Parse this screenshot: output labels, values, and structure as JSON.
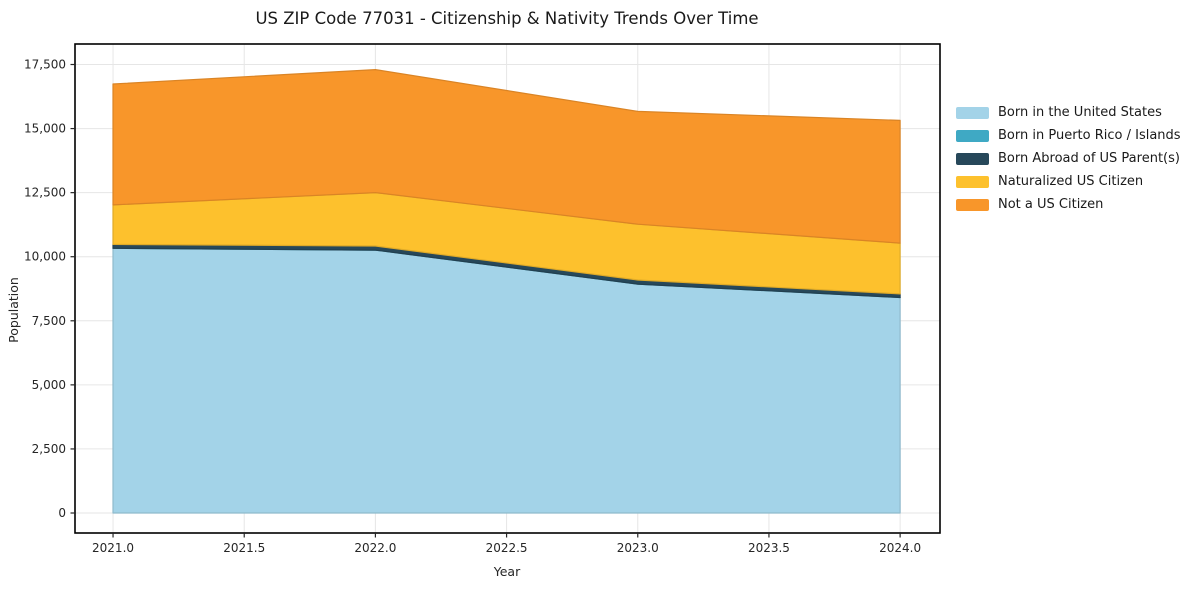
{
  "chart_data": {
    "type": "area",
    "stacked": true,
    "title": "US ZIP Code 77031 - Citizenship & Nativity Trends Over Time",
    "xlabel": "Year",
    "ylabel": "Population",
    "x": [
      2021,
      2022,
      2023,
      2024
    ],
    "series": [
      {
        "name": "Born in the United States",
        "color": "#a3d3e8",
        "values": [
          10330,
          10260,
          8930,
          8410
        ]
      },
      {
        "name": "Born in Puerto Rico / Islands",
        "color": "#3fa9c4",
        "values": [
          0,
          0,
          0,
          0
        ]
      },
      {
        "name": "Born Abroad of US Parent(s)",
        "color": "#27485a",
        "values": [
          150,
          160,
          160,
          140
        ]
      },
      {
        "name": "Naturalized US Citizen",
        "color": "#fdc12d",
        "values": [
          1540,
          2080,
          2180,
          1980
        ]
      },
      {
        "name": "Not a US Citizen",
        "color": "#f8962a",
        "values": [
          4720,
          4800,
          4400,
          4790
        ]
      }
    ],
    "stack_totals": [
      16740,
      17300,
      15670,
      15320
    ],
    "xticks": [
      2021.0,
      2021.5,
      2022.0,
      2022.5,
      2023.0,
      2023.5,
      2024.0
    ],
    "xtick_labels": [
      "2021.0",
      "2021.5",
      "2022.0",
      "2022.5",
      "2023.0",
      "2023.5",
      "2024.0"
    ],
    "yticks": [
      0,
      2500,
      5000,
      7500,
      10000,
      12500,
      15000,
      17500
    ],
    "ytick_labels": [
      "0",
      "2,500",
      "5,000",
      "7,500",
      "10,000",
      "12,500",
      "15,000",
      "17,500"
    ],
    "xlim": [
      2020.855,
      2024.152
    ],
    "ylim": [
      -780,
      18300
    ],
    "grid": true,
    "grid_color": "#e6e6e6",
    "spine_color": "#000000",
    "legend_position": "right-outside",
    "legend_frame": false
  }
}
